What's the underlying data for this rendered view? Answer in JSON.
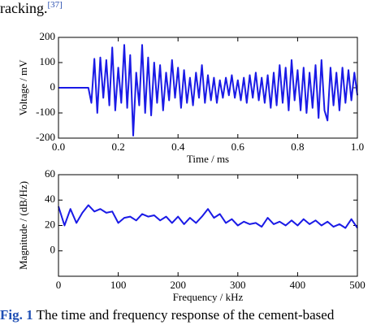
{
  "header": {
    "text": "racking.",
    "ref": "[37]"
  },
  "chart_data": [
    {
      "type": "line",
      "ylabel": "Voltage / mV",
      "xlabel": "Time / ms",
      "color": "#1a1ae6",
      "xlim": [
        0,
        1
      ],
      "xticks": [
        {
          "value": 0,
          "label": "0.0"
        },
        0.2,
        0.4,
        0.6,
        0.8,
        {
          "value": 1,
          "label": "1.0"
        }
      ],
      "ylim": [
        -200,
        200
      ],
      "yticks": [
        200,
        100,
        0,
        -100,
        -200
      ],
      "x": [
        0,
        0.05,
        0.1,
        0.11,
        0.12,
        0.13,
        0.14,
        0.15,
        0.16,
        0.17,
        0.18,
        0.19,
        0.2,
        0.21,
        0.22,
        0.23,
        0.24,
        0.25,
        0.26,
        0.27,
        0.28,
        0.29,
        0.3,
        0.31,
        0.32,
        0.33,
        0.34,
        0.35,
        0.36,
        0.37,
        0.38,
        0.39,
        0.4,
        0.41,
        0.42,
        0.43,
        0.44,
        0.45,
        0.46,
        0.47,
        0.48,
        0.49,
        0.5,
        0.51,
        0.52,
        0.53,
        0.54,
        0.55,
        0.56,
        0.57,
        0.58,
        0.59,
        0.6,
        0.61,
        0.62,
        0.63,
        0.64,
        0.65,
        0.66,
        0.67,
        0.68,
        0.69,
        0.7,
        0.71,
        0.72,
        0.73,
        0.74,
        0.75,
        0.76,
        0.77,
        0.78,
        0.79,
        0.8,
        0.81,
        0.82,
        0.83,
        0.84,
        0.85,
        0.86,
        0.87,
        0.88,
        0.89,
        0.9,
        0.91,
        0.92,
        0.93,
        0.94,
        0.95,
        0.96,
        0.97,
        0.98,
        0.99,
        1.0
      ],
      "values": [
        0,
        0,
        0,
        -60,
        115,
        -100,
        120,
        -40,
        110,
        -70,
        160,
        -90,
        80,
        -60,
        170,
        -80,
        130,
        -190,
        60,
        -70,
        170,
        -100,
        120,
        -110,
        100,
        -60,
        90,
        -90,
        60,
        -50,
        110,
        -40,
        80,
        -80,
        70,
        -60,
        40,
        -70,
        60,
        -40,
        90,
        -60,
        50,
        -50,
        40,
        -60,
        30,
        -40,
        40,
        -30,
        50,
        -40,
        30,
        -50,
        40,
        -60,
        50,
        -40,
        60,
        -50,
        40,
        -60,
        50,
        -80,
        60,
        -70,
        90,
        -60,
        80,
        -90,
        110,
        -50,
        70,
        -90,
        80,
        -100,
        60,
        -80,
        90,
        -120,
        110,
        -90,
        -130,
        80,
        -70,
        60,
        -90,
        80,
        -60,
        70,
        -50,
        60,
        -30
      ]
    },
    {
      "type": "line",
      "ylabel": "Magnitude / (dB/Hz)",
      "xlabel": "Frequency / kHz",
      "color": "#1a1ae6",
      "xlim": [
        0,
        500
      ],
      "xticks": [
        0,
        100,
        200,
        300,
        400,
        500
      ],
      "ylim": [
        -20,
        60
      ],
      "yticks": [
        0,
        20,
        40,
        60
      ],
      "x": [
        0,
        10,
        20,
        30,
        40,
        50,
        60,
        70,
        80,
        90,
        100,
        110,
        120,
        130,
        140,
        150,
        160,
        170,
        180,
        190,
        200,
        210,
        220,
        230,
        240,
        250,
        260,
        270,
        280,
        290,
        300,
        310,
        320,
        330,
        340,
        350,
        360,
        370,
        380,
        390,
        400,
        410,
        420,
        430,
        440,
        450,
        460,
        470,
        480,
        490,
        500
      ],
      "values": [
        35,
        20,
        33,
        22,
        30,
        36,
        31,
        33,
        30,
        31,
        22,
        26,
        27,
        24,
        29,
        27,
        28,
        24,
        27,
        22,
        27,
        21,
        26,
        22,
        27,
        33,
        26,
        29,
        22,
        25,
        20,
        23,
        21,
        22,
        19,
        26,
        21,
        23,
        20,
        24,
        20,
        25,
        21,
        24,
        20,
        23,
        19,
        21,
        18,
        25,
        18
      ]
    }
  ],
  "caption": {
    "label": "Fig. 1",
    "text": "The time and frequency response of the cement-based"
  }
}
